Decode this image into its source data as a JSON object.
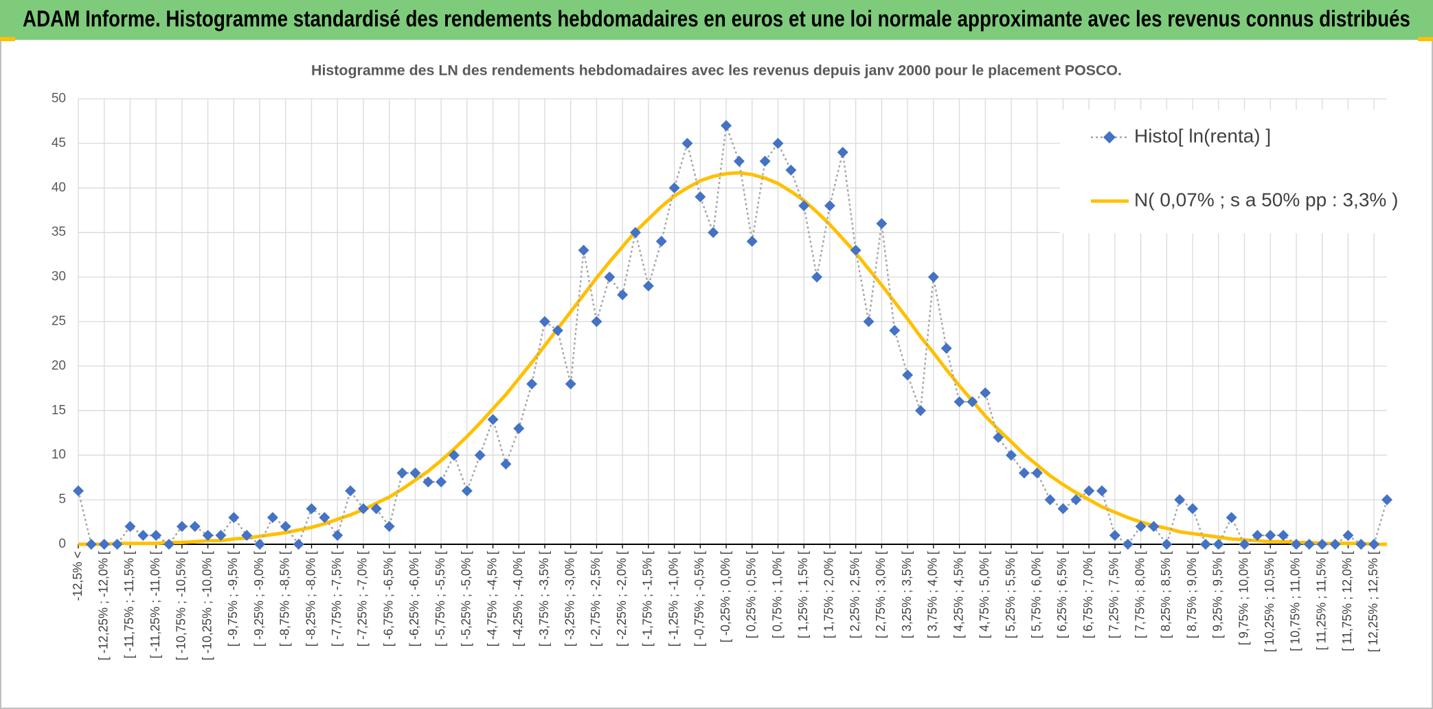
{
  "header": {
    "title": "ADAM Informe. Histogramme standardisé des rendements hebdomadaires en euros et une loi normale approximante avec les revenus connus distribués"
  },
  "chart_data": {
    "type": "line",
    "title": "Histogramme des LN des rendements hebdomadaires avec les revenus depuis janv 2000 pour le placement POSCO.",
    "categories": [
      "-12,5% <",
      null,
      "[ -12,25% ; -12,0% [",
      null,
      "[ -11,75% ; -11,5% [",
      null,
      "[ -11,25% ; -11,0% [",
      null,
      "[ -10,75% ; -10,5% [",
      null,
      "[ -10,25% ; -10,0% [",
      null,
      "[ -9,75% ; -9,5% [",
      null,
      "[ -9,25% ; -9,0% [",
      null,
      "[ -8,75% ; -8,5% [",
      null,
      "[ -8,25% ; -8,0% [",
      null,
      "[ -7,75% ; -7,5% [",
      null,
      "[ -7,25% ; -7,0% [",
      null,
      "[ -6,75% ; -6,5% [",
      null,
      "[ -6,25% ; -6,0% [",
      null,
      "[ -5,75% ; -5,5% [",
      null,
      "[ -5,25% ; -5,0% [",
      null,
      "[ -4,75% ; -4,5% [",
      null,
      "[ -4,25% ; -4,0% [",
      null,
      "[ -3,75% ; -3,5% [",
      null,
      "[ -3,25% ; -3,0% [",
      null,
      "[ -2,75% ; -2,5% [",
      null,
      "[ -2,25% ; -2,0% [",
      null,
      "[ -1,75% ; -1,5% [",
      null,
      "[ -1,25% ; -1,0% [",
      null,
      "[ -0,75% ; -0,5% [",
      null,
      "[ -0,25% ; 0,0% [",
      null,
      "[ 0,25% ; 0,5% [",
      null,
      "[ 0,75% ; 1,0% [",
      null,
      "[ 1,25% ; 1,5% [",
      null,
      "[ 1,75% ; 2,0% [",
      null,
      "[ 2,25% ; 2,5% [",
      null,
      "[ 2,75% ; 3,0% [",
      null,
      "[ 3,25% ; 3,5% [",
      null,
      "[ 3,75% ; 4,0% [",
      null,
      "[ 4,25% ; 4,5% [",
      null,
      "[ 4,75% ; 5,0% [",
      null,
      "[ 5,25% ; 5,5% [",
      null,
      "[ 5,75% ; 6,0% [",
      null,
      "[ 6,25% ; 6,5% [",
      null,
      "[ 6,75% ; 7,0% [",
      null,
      "[ 7,25% ; 7,5% [",
      null,
      "[ 7,75% ; 8,0% [",
      null,
      "[ 8,25% ; 8,5% [",
      null,
      "[ 8,75% ; 9,0% [",
      null,
      "[ 9,25% ; 9,5% [",
      null,
      "[ 9,75% ; 10,0% [",
      null,
      "[ 10,25% ; 10,5% [",
      null,
      "[ 10,75% ; 11,0% [",
      null,
      "[ 11,25% ; 11,5% [",
      null,
      "[ 11,75% ; 12,0% [",
      null,
      "[ 12,25% ; 12,5% [",
      null
    ],
    "series": [
      {
        "name": "Histo[ ln(renta) ]",
        "color": "#4472c4",
        "line_color": "#a5a5a5",
        "line_style": "dotted",
        "marker": "diamond",
        "values": [
          6,
          0,
          0,
          0,
          2,
          1,
          1,
          0,
          2,
          2,
          1,
          1,
          3,
          1,
          0,
          3,
          2,
          0,
          4,
          3,
          1,
          6,
          4,
          4,
          2,
          8,
          8,
          7,
          7,
          10,
          6,
          10,
          14,
          9,
          13,
          18,
          25,
          24,
          18,
          33,
          25,
          30,
          28,
          35,
          29,
          34,
          40,
          45,
          39,
          35,
          47,
          43,
          34,
          43,
          45,
          42,
          38,
          30,
          38,
          44,
          33,
          25,
          36,
          24,
          19,
          15,
          30,
          22,
          16,
          16,
          17,
          12,
          10,
          8,
          8,
          5,
          4,
          5,
          6,
          6,
          1,
          0,
          2,
          2,
          0,
          5,
          4,
          0,
          0,
          3,
          0,
          1,
          1,
          1,
          0,
          0,
          0,
          0,
          1,
          0,
          0,
          5
        ]
      },
      {
        "name": "N( 0,07% ; s a 50% pp : 3,3% )",
        "color": "#ffc000",
        "line_style": "solid",
        "marker": "none",
        "values": [
          0.0,
          0.0,
          0.0,
          0.1,
          0.1,
          0.1,
          0.1,
          0.2,
          0.2,
          0.3,
          0.4,
          0.4,
          0.6,
          0.7,
          0.9,
          1.1,
          1.3,
          1.6,
          1.9,
          2.3,
          2.8,
          3.3,
          3.9,
          4.6,
          5.3,
          6.2,
          7.2,
          8.2,
          9.4,
          10.7,
          12.1,
          13.6,
          15.2,
          16.8,
          18.6,
          20.4,
          22.3,
          24.2,
          26.1,
          28.0,
          29.9,
          31.7,
          33.4,
          35.1,
          36.5,
          37.9,
          39.1,
          40.0,
          40.8,
          41.3,
          41.6,
          41.7,
          41.5,
          41.1,
          40.5,
          39.6,
          38.6,
          37.3,
          35.9,
          34.3,
          32.7,
          30.9,
          29.1,
          27.2,
          25.3,
          23.3,
          21.5,
          19.6,
          17.8,
          16.1,
          14.4,
          12.9,
          11.5,
          10.1,
          8.9,
          7.7,
          6.7,
          5.8,
          5.0,
          4.2,
          3.6,
          3.0,
          2.5,
          2.1,
          1.8,
          1.4,
          1.2,
          1.0,
          0.8,
          0.6,
          0.5,
          0.4,
          0.3,
          0.3,
          0.2,
          0.2,
          0.1,
          0.1,
          0.1,
          0.1,
          0.0,
          0.0
        ]
      }
    ],
    "ylim": [
      0,
      50
    ],
    "yticks": [
      0,
      5,
      10,
      15,
      20,
      25,
      30,
      35,
      40,
      45,
      50
    ],
    "grid": true,
    "legend": "upper right"
  }
}
